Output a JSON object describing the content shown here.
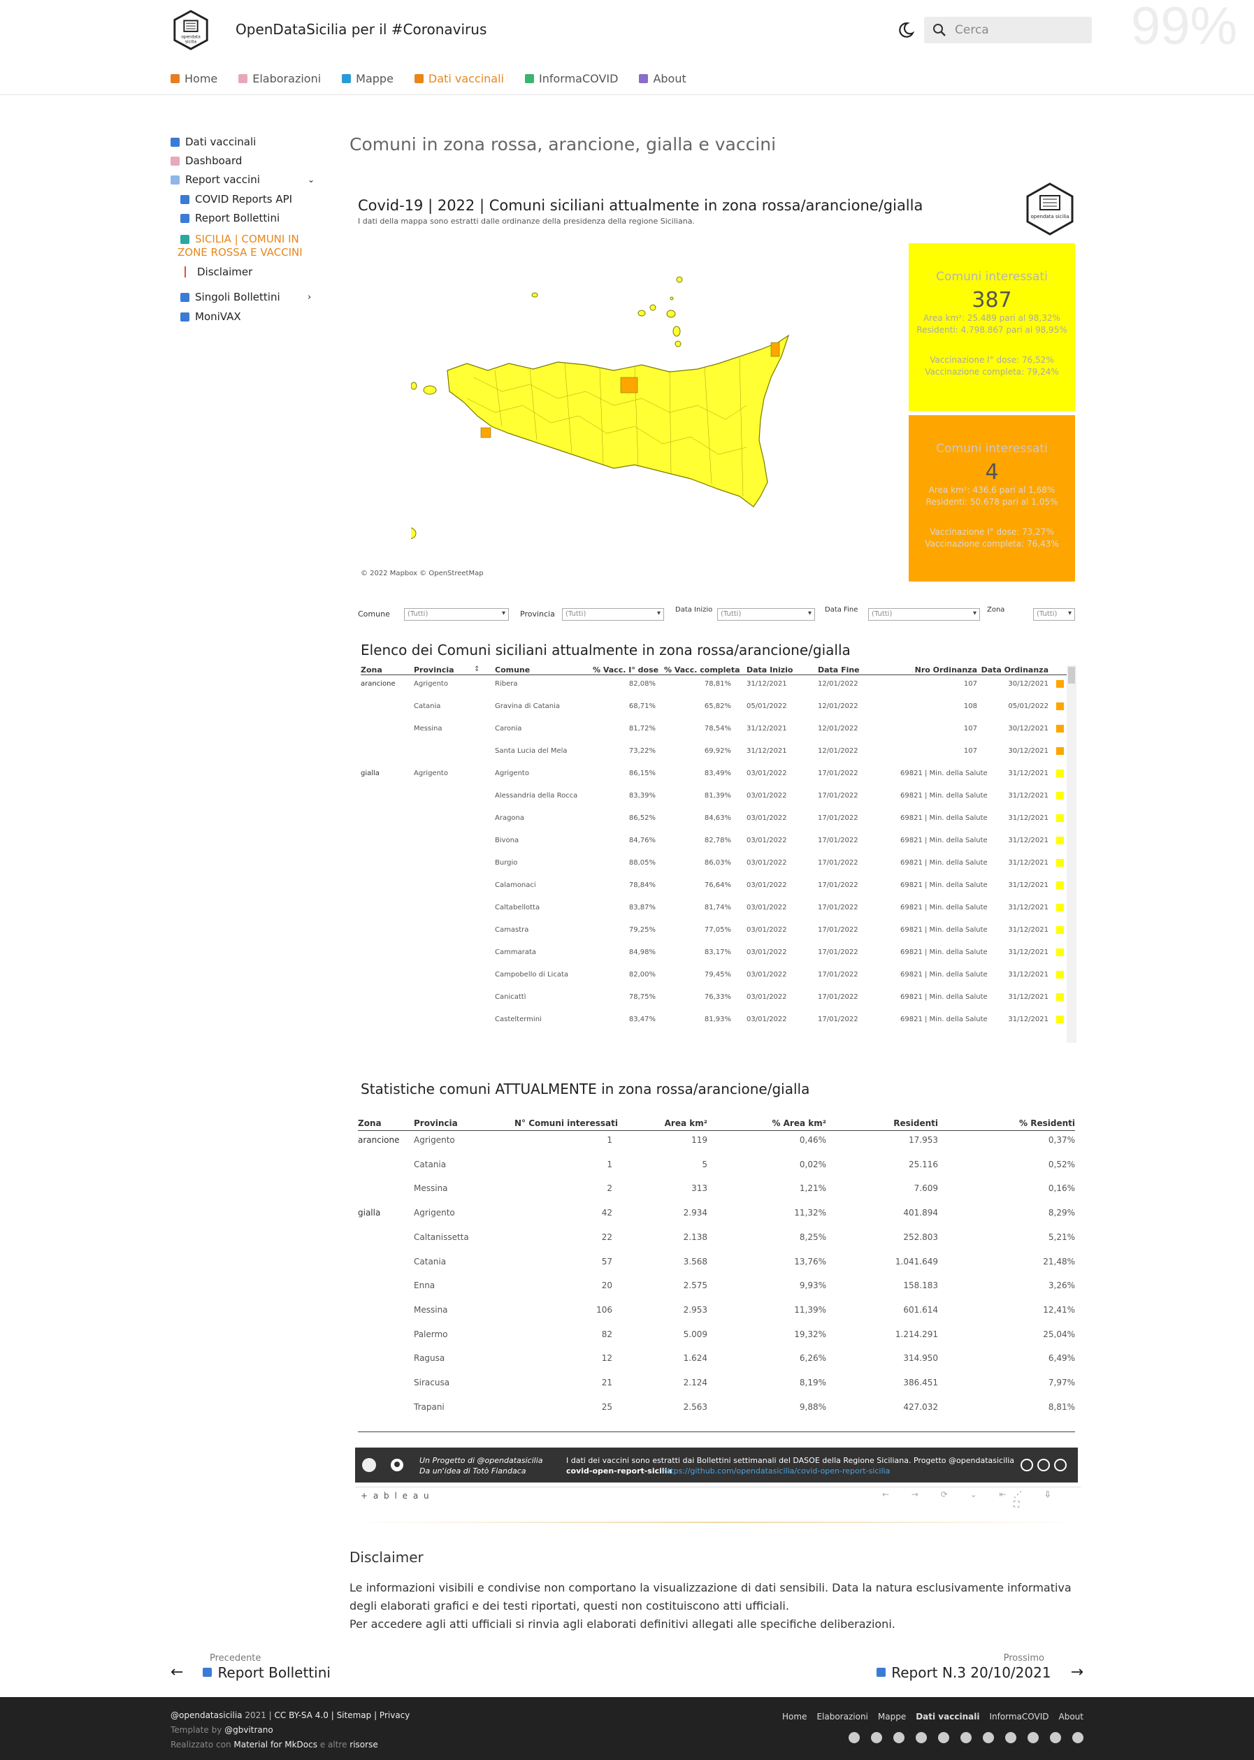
{
  "header": {
    "site_title": "OpenDataSicilia per il #Coronavirus",
    "search_placeholder": "Cerca",
    "percent": "99%"
  },
  "tabs": [
    {
      "label": "Home",
      "icon": "house-icon",
      "color": "#e67e22"
    },
    {
      "label": "Elaborazioni",
      "icon": "document-icon",
      "color": "#e9a8b8"
    },
    {
      "label": "Mappe",
      "icon": "map-icon",
      "color": "#2a9bd7"
    },
    {
      "label": "Dati vaccinali",
      "icon": "chart-icon",
      "color": "#e8861a",
      "active": true
    },
    {
      "label": "InformaCOVID",
      "icon": "drop-icon",
      "color": "#3cb371"
    },
    {
      "label": "About",
      "icon": "person-icon",
      "color": "#8a6cc9"
    }
  ],
  "sidebar": [
    {
      "label": "Dati vaccinali"
    },
    {
      "label": "Dashboard"
    },
    {
      "label": "Report vaccini"
    },
    {
      "label": "COVID Reports API"
    },
    {
      "label": "Report Bollettini"
    },
    {
      "label": "SICILIA | COMUNI IN"
    },
    {
      "label": "ZONE ROSSA E VACCINI"
    },
    {
      "label": "Disclaimer"
    },
    {
      "label": "Singoli Bollettini"
    },
    {
      "label": "MoniVAX"
    }
  ],
  "page_title": "Comuni in zona rossa, arancione, gialla e vaccini",
  "viz": {
    "title": "Covid-19 | 2022 | Comuni siciliani attualmente in zona rossa/arancione/gialla",
    "subtitle": "I dati della mappa sono estratti dalle ordinanze della presidenza della regione Siciliana.",
    "logo_text": "opendata sicilia",
    "attribution": "© 2022 Mapbox  © OpenStreetMap",
    "card_yellow": {
      "title": "Comuni interessati",
      "count": "387",
      "area": "Area km²: 25.489 pari al 98,32%",
      "residents": "Residenti: 4.798.867 pari al 98,95%",
      "dose1": "Vaccinazione I° dose: 76,52%",
      "complete": "Vaccinazione completa: 79,24%",
      "color": "#ffff00"
    },
    "card_orange": {
      "title": "Comuni interessati",
      "count": "4",
      "area": "Area km²: 436,6 pari al 1,68%",
      "residents": "Residenti: 50.678 pari al 1,05%",
      "dose1": "Vaccinazione I° dose: 73,27%",
      "complete": "Vaccinazione completa: 76,43%",
      "color": "#ffa500"
    },
    "filters": [
      {
        "label": "Comune",
        "value": "(Tutti)"
      },
      {
        "label": "Provincia",
        "value": "(Tutti)"
      },
      {
        "label": "Data Inizio",
        "value": "(Tutti)"
      },
      {
        "label": "Data Fine",
        "value": "(Tutti)"
      },
      {
        "label": "Zona",
        "value": "(Tutti)"
      }
    ],
    "list_title": "Elenco dei Comuni siciliani attualmente in zona rossa/arancione/gialla",
    "list_headers": [
      "Zona",
      "Provincia",
      "Comune",
      "% Vacc. I° dose",
      "% Vacc. completa",
      "Data Inizio",
      "Data Fine",
      "Nro Ordinanza",
      "Data Ordinanza"
    ],
    "list_rows": [
      [
        "arancione",
        "Agrigento",
        "Ribera",
        "82,08%",
        "78,81%",
        "31/12/2021",
        "12/01/2022",
        "107",
        "30/12/2021",
        "o"
      ],
      [
        "",
        "Catania",
        "Gravina di Catania",
        "68,71%",
        "65,82%",
        "05/01/2022",
        "12/01/2022",
        "108",
        "05/01/2022",
        "o"
      ],
      [
        "",
        "Messina",
        "Caronia",
        "81,72%",
        "78,54%",
        "31/12/2021",
        "12/01/2022",
        "107",
        "30/12/2021",
        "o"
      ],
      [
        "",
        "",
        "Santa Lucia del Mela",
        "73,22%",
        "69,92%",
        "31/12/2021",
        "12/01/2022",
        "107",
        "30/12/2021",
        "o"
      ],
      [
        "gialla",
        "Agrigento",
        "Agrigento",
        "86,15%",
        "83,49%",
        "03/01/2022",
        "17/01/2022",
        "69821 | Min. della Salute",
        "31/12/2021",
        "y"
      ],
      [
        "",
        "",
        "Alessandria della Rocca",
        "83,39%",
        "81,39%",
        "03/01/2022",
        "17/01/2022",
        "69821 | Min. della Salute",
        "31/12/2021",
        "y"
      ],
      [
        "",
        "",
        "Aragona",
        "86,52%",
        "84,63%",
        "03/01/2022",
        "17/01/2022",
        "69821 | Min. della Salute",
        "31/12/2021",
        "y"
      ],
      [
        "",
        "",
        "Bivona",
        "84,76%",
        "82,78%",
        "03/01/2022",
        "17/01/2022",
        "69821 | Min. della Salute",
        "31/12/2021",
        "y"
      ],
      [
        "",
        "",
        "Burgio",
        "88,05%",
        "86,03%",
        "03/01/2022",
        "17/01/2022",
        "69821 | Min. della Salute",
        "31/12/2021",
        "y"
      ],
      [
        "",
        "",
        "Calamonaci",
        "78,84%",
        "76,64%",
        "03/01/2022",
        "17/01/2022",
        "69821 | Min. della Salute",
        "31/12/2021",
        "y"
      ],
      [
        "",
        "",
        "Caltabellotta",
        "83,87%",
        "81,74%",
        "03/01/2022",
        "17/01/2022",
        "69821 | Min. della Salute",
        "31/12/2021",
        "y"
      ],
      [
        "",
        "",
        "Camastra",
        "79,25%",
        "77,05%",
        "03/01/2022",
        "17/01/2022",
        "69821 | Min. della Salute",
        "31/12/2021",
        "y"
      ],
      [
        "",
        "",
        "Cammarata",
        "84,98%",
        "83,17%",
        "03/01/2022",
        "17/01/2022",
        "69821 | Min. della Salute",
        "31/12/2021",
        "y"
      ],
      [
        "",
        "",
        "Campobello di Licata",
        "82,00%",
        "79,45%",
        "03/01/2022",
        "17/01/2022",
        "69821 | Min. della Salute",
        "31/12/2021",
        "y"
      ],
      [
        "",
        "",
        "Canicattì",
        "78,75%",
        "76,33%",
        "03/01/2022",
        "17/01/2022",
        "69821 | Min. della Salute",
        "31/12/2021",
        "y"
      ],
      [
        "",
        "",
        "Casteltermini",
        "83,47%",
        "81,93%",
        "03/01/2022",
        "17/01/2022",
        "69821 | Min. della Salute",
        "31/12/2021",
        "y"
      ]
    ],
    "stats_title": "Statistiche comuni ATTUALMENTE in zona rossa/arancione/gialla",
    "stats_headers": [
      "Zona",
      "Provincia",
      "N° Comuni interessati",
      "Area km²",
      "% Area km²",
      "Residenti",
      "% Residenti"
    ],
    "stats_rows": [
      [
        "arancione",
        "Agrigento",
        "1",
        "119",
        "0,46%",
        "17.953",
        "0,37%"
      ],
      [
        "",
        "Catania",
        "1",
        "5",
        "0,02%",
        "25.116",
        "0,52%"
      ],
      [
        "",
        "Messina",
        "2",
        "313",
        "1,21%",
        "7.609",
        "0,16%"
      ],
      [
        "gialla",
        "Agrigento",
        "42",
        "2.934",
        "11,32%",
        "401.894",
        "8,29%"
      ],
      [
        "",
        "Caltanissetta",
        "22",
        "2.138",
        "8,25%",
        "252.803",
        "5,21%"
      ],
      [
        "",
        "Catania",
        "57",
        "3.568",
        "13,76%",
        "1.041.649",
        "21,48%"
      ],
      [
        "",
        "Enna",
        "20",
        "2.575",
        "9,93%",
        "158.183",
        "3,26%"
      ],
      [
        "",
        "Messina",
        "106",
        "2.953",
        "11,39%",
        "601.614",
        "12,41%"
      ],
      [
        "",
        "Palermo",
        "82",
        "5.009",
        "19,32%",
        "1.214.291",
        "25,04%"
      ],
      [
        "",
        "Ragusa",
        "12",
        "1.624",
        "6,26%",
        "314.950",
        "6,49%"
      ],
      [
        "",
        "Siracusa",
        "21",
        "2.124",
        "8,19%",
        "386.451",
        "7,97%"
      ],
      [
        "",
        "Trapani",
        "25",
        "2.563",
        "9,88%",
        "427.032",
        "8,81%"
      ]
    ],
    "banner_left1": "Un Progetto di @opendatasicilia",
    "banner_left2": "Da un'idea di Totò Fiandaca",
    "banner_right1": "I dati dei vaccini sono estratti dai Bollettini settimanali del DASOE della Regione Siciliana. Progetto @opendatasicilia",
    "banner_right2a": "covid-open-report-sicilia",
    "banner_right2b": "https://github.com/opendatasicilia/covid-open-report-sicilia",
    "tableau": "+ a b l e a u"
  },
  "disclaimer": {
    "title": "Disclaimer",
    "p1": "Le informazioni visibili e condivise non comportano la visualizzazione di dati sensibili. Data la natura esclusivamente informativa degli elaborati grafici e dei testi riportati, questi non costituiscono atti ufficiali.",
    "p2": "Per accedere agli atti ufficiali si rinvia agli elaborati definitivi allegati alle specifiche deliberazioni."
  },
  "pager": {
    "prev_label": "Precedente",
    "prev_title": "Report Bollettini",
    "next_label": "Prossimo",
    "next_title": "Report N.3 20/10/2021"
  },
  "footer": {
    "line1a": "@opendatasicilia",
    "line1b": " 2021 | ",
    "line1c": "CC BY-SA 4.0",
    " line1d": "",
    "line1e": " | Sitemap | Privacy",
    "line2a": "Template by ",
    "line2b": "@gbvitrano",
    "line3a": "Realizzato con ",
    "line3b": "Material for MkDocs",
    "line3c": " e altre ",
    "line3d": "risorse",
    "nav": [
      "Home",
      "Elaborazioni",
      "Mappe",
      "Dati vaccinali",
      "InformaCOVID",
      "About"
    ]
  }
}
